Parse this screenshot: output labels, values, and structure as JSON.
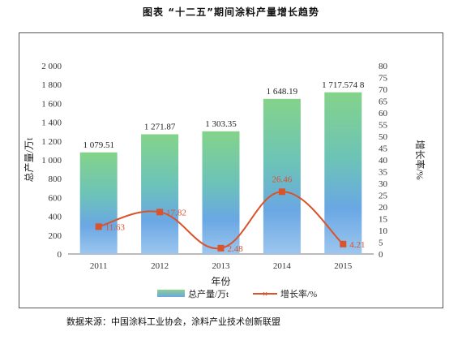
{
  "caption": "图表 “十二五”期间涂料产量增长趋势",
  "source": "数据来源：中国涂料工业协会，涂料产业技术创新联盟",
  "chart_data": {
    "type": "bar",
    "categories": [
      "2011",
      "2012",
      "2013",
      "2014",
      "2015"
    ],
    "xlabel": "年份",
    "series": [
      {
        "name": "总产量/万t",
        "type": "bar",
        "axis": "left",
        "values": [
          1079.51,
          1271.87,
          1303.35,
          1648.19,
          1717.57
        ],
        "labels": [
          "1 079.51",
          "1 271.87",
          "1 303.35",
          "1 648.19",
          "1 717.574 8"
        ]
      },
      {
        "name": "增长率/%",
        "type": "line",
        "axis": "right",
        "values": [
          11.63,
          17.82,
          2.48,
          26.46,
          4.21
        ],
        "labels": [
          "11.63",
          "17.82",
          "2.48",
          "26.46",
          "4.21"
        ],
        "color": "#d9532b"
      }
    ],
    "ylabel_left": "总产量/万t",
    "ylabel_right": "增长率/%",
    "ylim_left": [
      0,
      2000
    ],
    "yticks_left": [
      "0",
      "200",
      "400",
      "600",
      "800",
      "1 000",
      "1 200",
      "1 400",
      "1 600",
      "1 800",
      "2 000"
    ],
    "ylim_right": [
      0,
      80
    ],
    "yticks_right": [
      "0",
      "5",
      "10",
      "15",
      "20",
      "25",
      "30",
      "35",
      "40",
      "45",
      "50",
      "55",
      "60",
      "65",
      "70",
      "75",
      "80"
    ],
    "grid": false,
    "legend_position": "bottom"
  }
}
